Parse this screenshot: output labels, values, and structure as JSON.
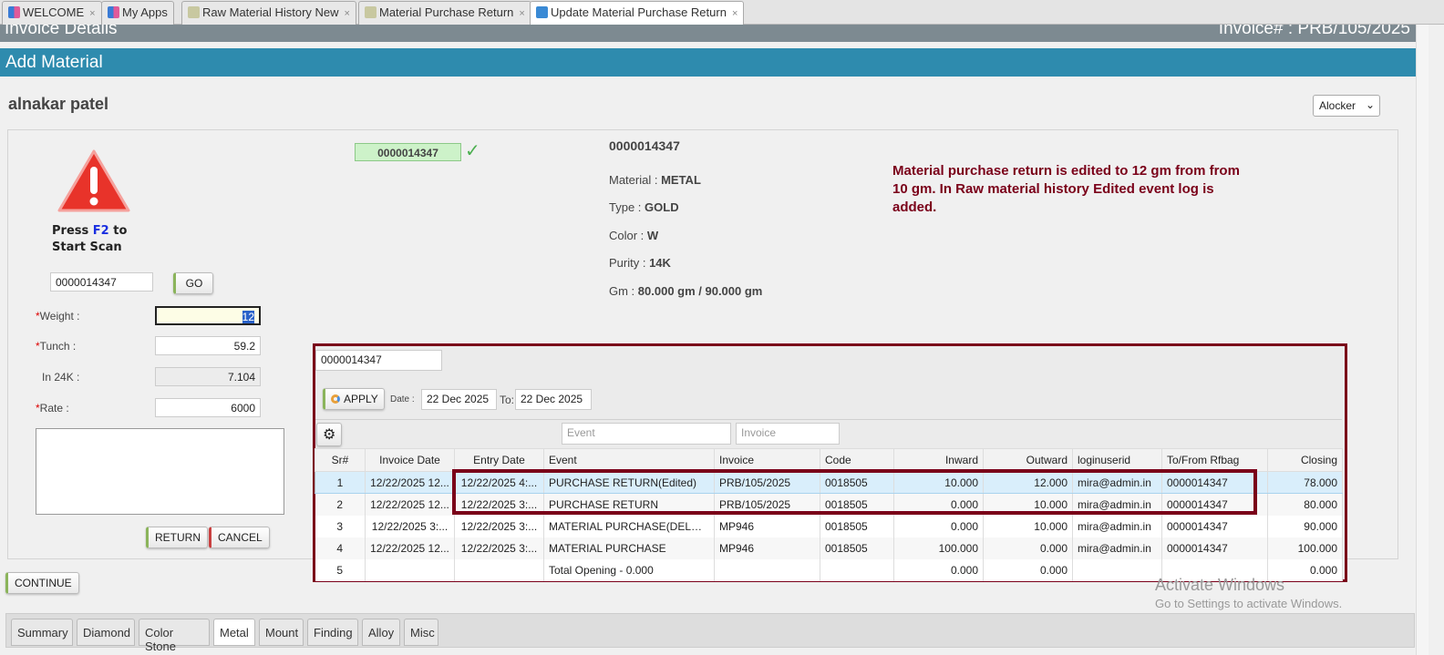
{
  "tabs": [
    {
      "label": "WELCOME",
      "closable": true
    },
    {
      "label": "My Apps",
      "closable": false
    },
    {
      "label": "Raw Material History New",
      "closable": true
    },
    {
      "label": "Material Purchase Return",
      "closable": true
    },
    {
      "label": "Update Material Purchase Return",
      "closable": true,
      "active": true
    }
  ],
  "header": {
    "title": "Invoice Details",
    "invoice": "Invoice# : PRB/105/2025",
    "section": "Add Material"
  },
  "customer": "alnakar patel",
  "locker_select": "Alocker",
  "scan": {
    "press": "Press ",
    "key": "F2",
    "to": " to",
    "start": "Start Scan",
    "barcode_value": "0000014347",
    "go": "GO"
  },
  "form": {
    "weight_label": "Weight :",
    "weight": "12",
    "tunch_label": "Tunch :",
    "tunch": "59.2",
    "in24k_label": "In 24K :",
    "in24k": "7.104",
    "rate_label": "Rate :",
    "rate": "6000",
    "return": "RETURN",
    "cancel": "CANCEL"
  },
  "continue": "CONTINUE",
  "item": {
    "badge": "0000014347",
    "code": "0000014347",
    "material_label": "Material : ",
    "material": "METAL",
    "type_label": "Type : ",
    "type": "GOLD",
    "color_label": "Color : ",
    "color": "W",
    "purity_label": "Purity : ",
    "purity": "14K",
    "gm_label": "Gm : ",
    "gm": "80.000 gm / 90.000 gm"
  },
  "note": "Material purchase return is edited to 12 gm from from 10 gm. In Raw material history Edited event log is added.",
  "history": {
    "search": "0000014347",
    "apply": "APPLY",
    "date_label": "Date :",
    "from": "22 Dec 2025",
    "to_label": "To:",
    "to": "22 Dec 2025",
    "event_placeholder": "Event",
    "invoice_placeholder": "Invoice",
    "columns": [
      "Sr#",
      "Invoice Date",
      "Entry Date",
      "Event",
      "Invoice",
      "Code",
      "Inward",
      "Outward",
      "loginuserid",
      "To/From Rfbag",
      "Closing"
    ],
    "rows": [
      [
        "1",
        "12/22/2025 12...",
        "12/22/2025 4:...",
        "PURCHASE RETURN(Edited)",
        "PRB/105/2025",
        "0018505",
        "10.000",
        "12.000",
        "mira@admin.in",
        "0000014347",
        "78.000"
      ],
      [
        "2",
        "12/22/2025 12...",
        "12/22/2025 3:...",
        "PURCHASE RETURN",
        "PRB/105/2025",
        "0018505",
        "0.000",
        "10.000",
        "mira@admin.in",
        "0000014347",
        "80.000"
      ],
      [
        "3",
        "12/22/2025 3:...",
        "12/22/2025 3:...",
        "MATERIAL PURCHASE(DELETE)",
        "MP946",
        "0018505",
        "0.000",
        "10.000",
        "mira@admin.in",
        "0000014347",
        "90.000"
      ],
      [
        "4",
        "12/22/2025 12...",
        "12/22/2025 3:...",
        "MATERIAL PURCHASE",
        "MP946",
        "0018505",
        "100.000",
        "0.000",
        "mira@admin.in",
        "0000014347",
        "100.000"
      ],
      [
        "5",
        "",
        "",
        "Total Opening - 0.000",
        "",
        "",
        "0.000",
        "0.000",
        "",
        "",
        "0.000"
      ]
    ]
  },
  "bottom_tabs": [
    "Summary",
    "Diamond",
    "Color Stone",
    "Metal",
    "Mount",
    "Finding",
    "Alloy",
    "Misc"
  ],
  "bottom_active": "Metal",
  "watermark": {
    "line1": "Activate Windows",
    "line2": "Go to Settings to activate Windows."
  },
  "colors": {
    "accent": "#2e8bae",
    "highlight": "#7a0019",
    "header": "#7d8a91"
  }
}
